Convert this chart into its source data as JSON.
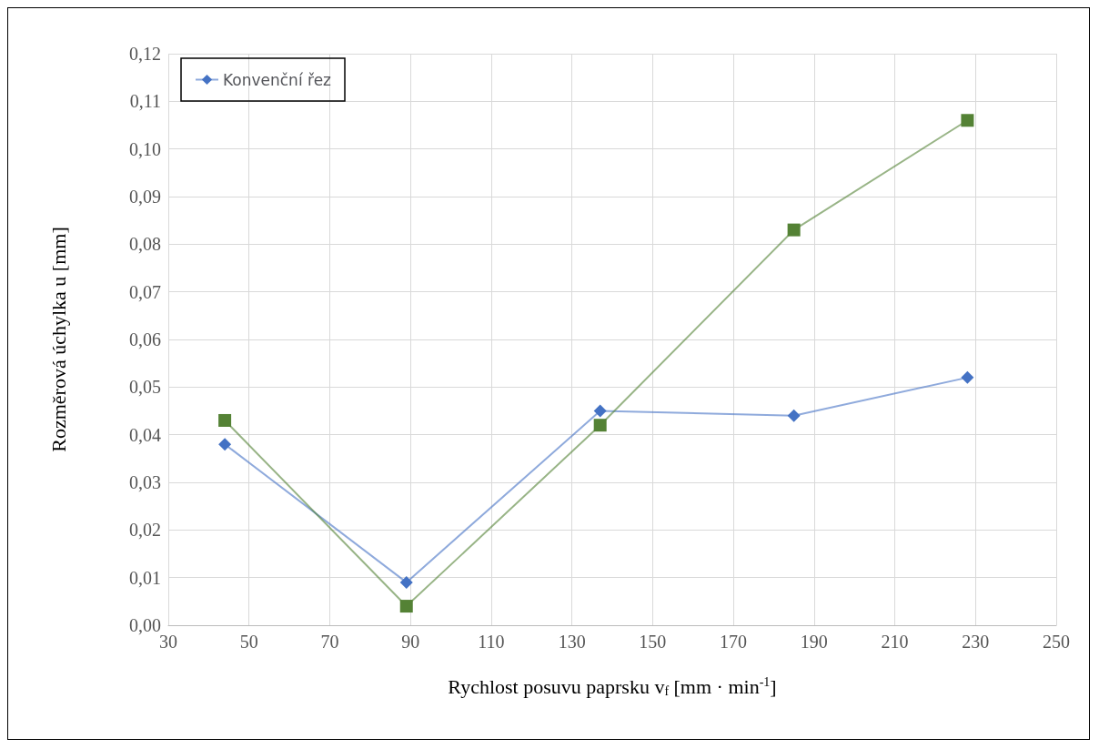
{
  "chart_data": {
    "type": "line",
    "xlabel": "Rychlost posuvu paprsku v$_{f}$ [mm · min$^{-1}$]",
    "ylabel": "Rozměrová úchylka u [mm]",
    "x": [
      44,
      89,
      137,
      185,
      228
    ],
    "series": [
      {
        "name": "Konvenční řez",
        "color": "#4472c4",
        "marker": "diamond",
        "values": [
          0.038,
          0.009,
          0.045,
          0.044,
          0.052
        ]
      },
      {
        "color": "#548235",
        "marker": "square",
        "values": [
          0.043,
          0.004,
          0.042,
          0.083,
          0.106
        ]
      }
    ],
    "xlim": [
      30,
      250
    ],
    "xticks": [
      30,
      50,
      70,
      90,
      110,
      130,
      150,
      170,
      190,
      210,
      230,
      250
    ],
    "ylim": [
      0,
      0.12
    ],
    "yticks": [
      {
        "value": 0,
        "label": "0,00"
      },
      {
        "value": 0.01,
        "label": "0,01"
      },
      {
        "value": 0.02,
        "label": "0,02"
      },
      {
        "value": 0.03,
        "label": "0,03"
      },
      {
        "value": 0.04,
        "label": "0,04"
      },
      {
        "value": 0.05,
        "label": "0,05"
      },
      {
        "value": 0.06,
        "label": "0,06"
      },
      {
        "value": 0.07,
        "label": "0,07"
      },
      {
        "value": 0.08,
        "label": "0,08"
      },
      {
        "value": 0.09,
        "label": "0,09"
      },
      {
        "value": 0.1,
        "label": "0,10"
      },
      {
        "value": 0.11,
        "label": "0,11"
      },
      {
        "value": 0.12,
        "label": "0,12"
      }
    ],
    "grid": true,
    "legend": "top left",
    "line_style": "solid"
  }
}
